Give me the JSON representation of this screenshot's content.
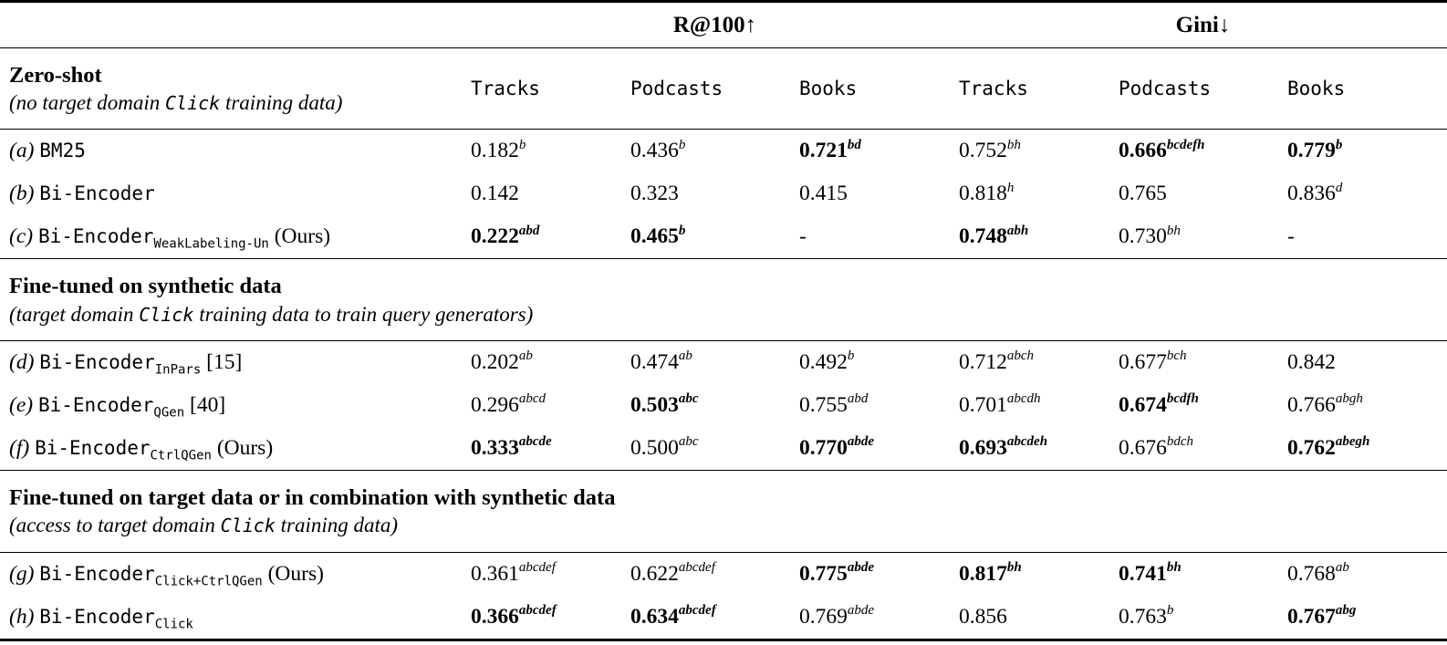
{
  "page": {
    "background": "#ffffff",
    "text_color": "#000000"
  },
  "header": {
    "group1": "R@100↑",
    "group2": "Gini↓",
    "columns": [
      "Tracks",
      "Podcasts",
      "Books",
      "Tracks",
      "Podcasts",
      "Books"
    ]
  },
  "chart_data": {
    "type": "table",
    "title": "Retrieval results R@100 (higher better) and Gini (lower better) across Tracks, Podcasts, Books domains"
  },
  "sections": [
    {
      "title": "Zero-shot",
      "subtitle_pre": "(no target domain ",
      "subtitle_code": "Click",
      "subtitle_post": " training data)",
      "show_columns": true,
      "rows": [
        {
          "idx": "(a)",
          "name": "BM25",
          "sub": "",
          "suffix": "",
          "cells": [
            {
              "v": "0.182",
              "s": "b",
              "b": false
            },
            {
              "v": "0.436",
              "s": "b",
              "b": false
            },
            {
              "v": "0.721",
              "s": "bd",
              "b": true
            },
            {
              "v": "0.752",
              "s": "bh",
              "b": false
            },
            {
              "v": "0.666",
              "s": "bcdefh",
              "b": true
            },
            {
              "v": "0.779",
              "s": "b",
              "b": true
            }
          ]
        },
        {
          "idx": "(b)",
          "name": "Bi-Encoder",
          "sub": "",
          "suffix": "",
          "cells": [
            {
              "v": "0.142",
              "s": "",
              "b": false
            },
            {
              "v": "0.323",
              "s": "",
              "b": false
            },
            {
              "v": "0.415",
              "s": "",
              "b": false
            },
            {
              "v": "0.818",
              "s": "h",
              "b": false
            },
            {
              "v": "0.765",
              "s": "",
              "b": false
            },
            {
              "v": "0.836",
              "s": "d",
              "b": false
            }
          ]
        },
        {
          "idx": "(c)",
          "name": "Bi-Encoder",
          "sub": "WeakLabeling-Un",
          "suffix": " (Ours)",
          "cells": [
            {
              "v": "0.222",
              "s": "abd",
              "b": true
            },
            {
              "v": "0.465",
              "s": "b",
              "b": true
            },
            {
              "v": "-",
              "s": "",
              "b": false
            },
            {
              "v": "0.748",
              "s": "abh",
              "b": true
            },
            {
              "v": "0.730",
              "s": "bh",
              "b": false
            },
            {
              "v": "-",
              "s": "",
              "b": false
            }
          ]
        }
      ]
    },
    {
      "title": "Fine-tuned on synthetic data",
      "subtitle_pre": "(target domain ",
      "subtitle_code": "Click",
      "subtitle_post": " training data to train query generators)",
      "show_columns": false,
      "rows": [
        {
          "idx": "(d)",
          "name": "Bi-Encoder",
          "sub": "InPars",
          "suffix": " [15]",
          "cells": [
            {
              "v": "0.202",
              "s": "ab",
              "b": false
            },
            {
              "v": "0.474",
              "s": "ab",
              "b": false
            },
            {
              "v": "0.492",
              "s": "b",
              "b": false
            },
            {
              "v": "0.712",
              "s": "abch",
              "b": false
            },
            {
              "v": "0.677",
              "s": "bch",
              "b": false
            },
            {
              "v": "0.842",
              "s": "",
              "b": false
            }
          ]
        },
        {
          "idx": "(e)",
          "name": "Bi-Encoder",
          "sub": "QGen",
          "suffix": " [40]",
          "cells": [
            {
              "v": "0.296",
              "s": "abcd",
              "b": false
            },
            {
              "v": "0.503",
              "s": "abc",
              "b": true
            },
            {
              "v": "0.755",
              "s": "abd",
              "b": false
            },
            {
              "v": "0.701",
              "s": "abcdh",
              "b": false
            },
            {
              "v": "0.674",
              "s": "bcdfh",
              "b": true
            },
            {
              "v": "0.766",
              "s": "abgh",
              "b": false
            }
          ]
        },
        {
          "idx": "(f)",
          "name": "Bi-Encoder",
          "sub": "CtrlQGen",
          "suffix": " (Ours)",
          "cells": [
            {
              "v": "0.333",
              "s": "abcde",
              "b": true
            },
            {
              "v": "0.500",
              "s": "abc",
              "b": false
            },
            {
              "v": "0.770",
              "s": "abde",
              "b": true
            },
            {
              "v": "0.693",
              "s": "abcdeh",
              "b": true
            },
            {
              "v": "0.676",
              "s": "bdch",
              "b": false
            },
            {
              "v": "0.762",
              "s": "abegh",
              "b": true
            }
          ]
        }
      ]
    },
    {
      "title": "Fine-tuned on target data or in combination with synthetic data",
      "subtitle_pre": "(access to target domain ",
      "subtitle_code": "Click",
      "subtitle_post": " training data)",
      "show_columns": false,
      "rows": [
        {
          "idx": "(g)",
          "name": "Bi-Encoder",
          "sub": "Click+CtrlQGen",
          "suffix": " (Ours)",
          "cells": [
            {
              "v": "0.361",
              "s": "abcdef",
              "b": false
            },
            {
              "v": "0.622",
              "s": "abcdef",
              "b": false
            },
            {
              "v": "0.775",
              "s": "abde",
              "b": true
            },
            {
              "v": "0.817",
              "s": "bh",
              "b": true
            },
            {
              "v": "0.741",
              "s": "bh",
              "b": true
            },
            {
              "v": "0.768",
              "s": "ab",
              "b": false
            }
          ]
        },
        {
          "idx": "(h)",
          "name": "Bi-Encoder",
          "sub": "Click",
          "suffix": "",
          "cells": [
            {
              "v": "0.366",
              "s": "abcdef",
              "b": true
            },
            {
              "v": "0.634",
              "s": "abcdef",
              "b": true
            },
            {
              "v": "0.769",
              "s": "abde",
              "b": false
            },
            {
              "v": "0.856",
              "s": "",
              "b": false
            },
            {
              "v": "0.763",
              "s": "b",
              "b": false
            },
            {
              "v": "0.767",
              "s": "abg",
              "b": true
            }
          ]
        }
      ]
    }
  ]
}
